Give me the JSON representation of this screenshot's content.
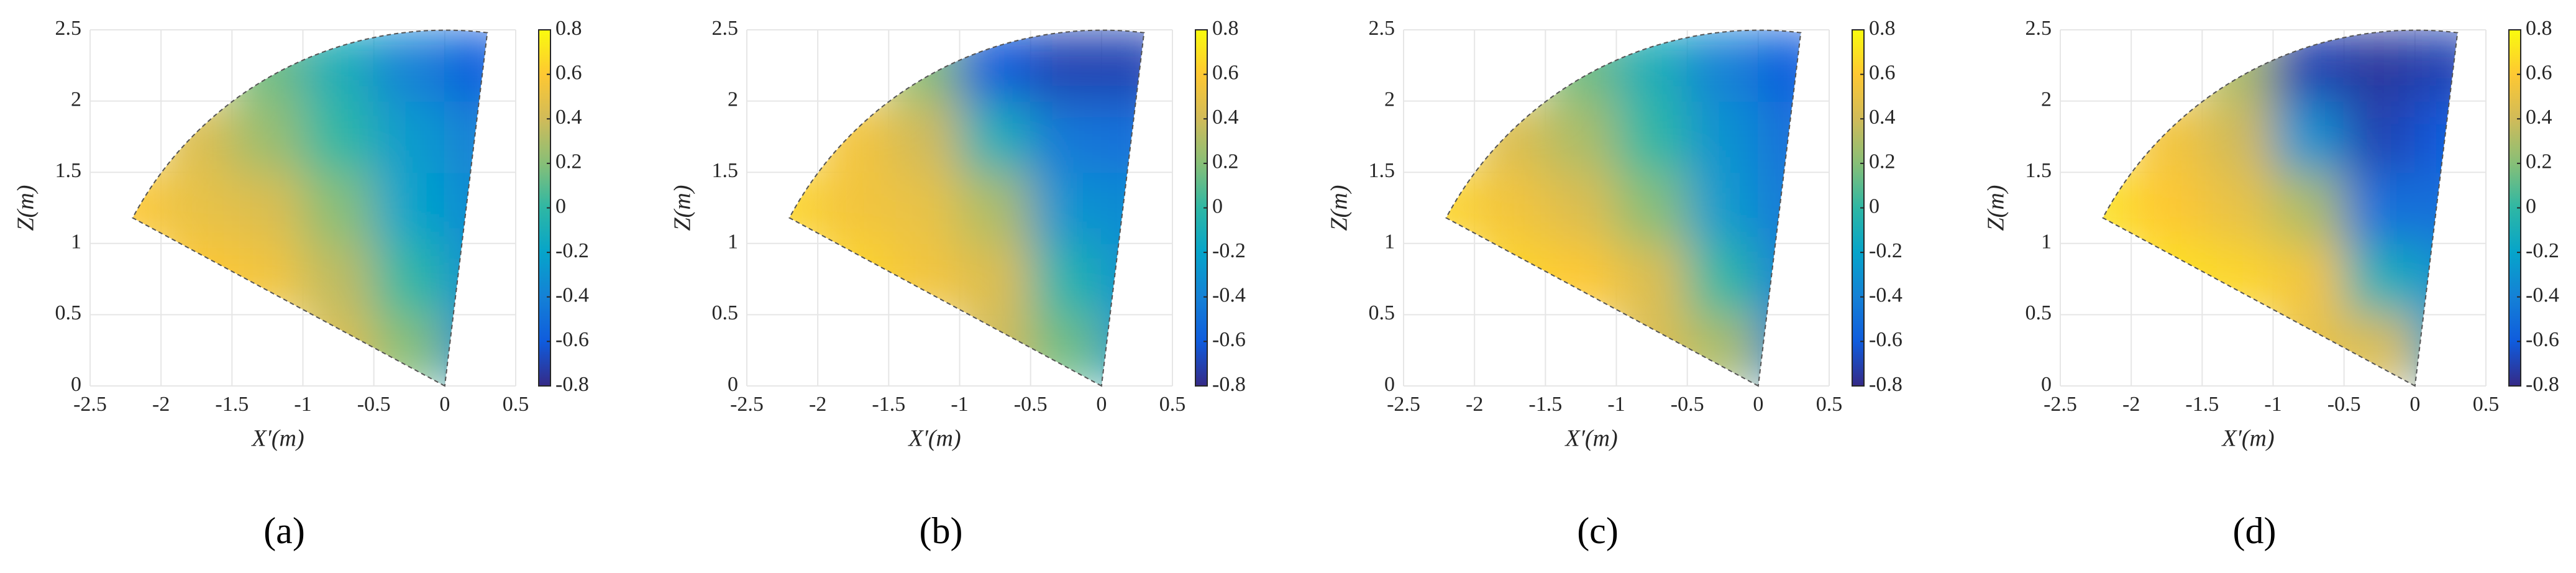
{
  "chart_data": [
    {
      "type": "heatmap",
      "panel_label": "(a)",
      "xlabel": "X′(m)",
      "ylabel": "Z(m)",
      "x": [
        -2.25,
        -1.75,
        -1.25,
        -0.75,
        -0.25,
        0.25
      ],
      "y": [
        0.25,
        0.75,
        1.25,
        1.75,
        2.25
      ],
      "z": [
        [
          null,
          null,
          null,
          0.45,
          0.2,
          -0.3
        ],
        [
          null,
          0.6,
          0.55,
          0.35,
          0.0,
          -0.3
        ],
        [
          0.6,
          0.5,
          0.45,
          0.2,
          -0.2,
          -0.35
        ],
        [
          null,
          0.45,
          0.25,
          0.0,
          -0.25,
          -0.4
        ],
        [
          null,
          null,
          0.15,
          -0.1,
          -0.4,
          -0.6
        ]
      ],
      "xlim": [
        -2.5,
        0.5
      ],
      "xticks": [
        -2.5,
        -2,
        -1.5,
        -1,
        -0.5,
        0,
        0.5
      ],
      "ylim": [
        0,
        2.5
      ],
      "yticks": [
        0,
        0.5,
        1,
        1.5,
        2,
        2.5
      ],
      "clim": [
        -0.8,
        0.8
      ],
      "cticks": [
        -0.8,
        -0.6,
        -0.4,
        -0.2,
        0,
        0.2,
        0.4,
        0.6,
        0.8
      ],
      "colormap": "parula",
      "grid": true
    },
    {
      "type": "heatmap",
      "panel_label": "(b)",
      "xlabel": "X′(m)",
      "ylabel": "Z(m)",
      "x": [
        -2.25,
        -1.75,
        -1.25,
        -0.75,
        -0.25,
        0.25
      ],
      "y": [
        0.25,
        0.75,
        1.25,
        1.75,
        2.25
      ],
      "z": [
        [
          null,
          null,
          null,
          0.4,
          0.15,
          -0.25
        ],
        [
          null,
          0.65,
          0.55,
          0.45,
          -0.05,
          -0.3
        ],
        [
          0.65,
          0.55,
          0.5,
          0.3,
          -0.3,
          -0.35
        ],
        [
          null,
          0.55,
          0.4,
          -0.1,
          -0.45,
          -0.5
        ],
        [
          null,
          null,
          0.2,
          -0.6,
          -0.7,
          -0.7
        ]
      ],
      "xlim": [
        -2.5,
        0.5
      ],
      "xticks": [
        -2.5,
        -2,
        -1.5,
        -1,
        -0.5,
        0,
        0.5
      ],
      "ylim": [
        0,
        2.5
      ],
      "yticks": [
        0,
        0.5,
        1,
        1.5,
        2,
        2.5
      ],
      "clim": [
        -0.8,
        0.8
      ],
      "cticks": [
        -0.8,
        -0.6,
        -0.4,
        -0.2,
        0,
        0.2,
        0.4,
        0.6,
        0.8
      ],
      "colormap": "parula",
      "grid": true
    },
    {
      "type": "heatmap",
      "panel_label": "(c)",
      "xlabel": "X′(m)",
      "ylabel": "Z(m)",
      "x": [
        -2.25,
        -1.75,
        -1.25,
        -0.75,
        -0.25,
        0.25
      ],
      "y": [
        0.25,
        0.75,
        1.25,
        1.75,
        2.25
      ],
      "z": [
        [
          null,
          null,
          null,
          0.45,
          0.3,
          -0.35
        ],
        [
          null,
          0.65,
          0.6,
          0.45,
          0.0,
          -0.4
        ],
        [
          0.65,
          0.55,
          0.45,
          0.2,
          -0.25,
          -0.45
        ],
        [
          null,
          0.45,
          0.3,
          0.0,
          -0.3,
          -0.5
        ],
        [
          null,
          null,
          0.15,
          -0.1,
          -0.4,
          -0.6
        ]
      ],
      "xlim": [
        -2.5,
        0.5
      ],
      "xticks": [
        -2.5,
        -2,
        -1.5,
        -1,
        -0.5,
        0,
        0.5
      ],
      "ylim": [
        0,
        2.5
      ],
      "yticks": [
        0,
        0.5,
        1,
        1.5,
        2,
        2.5
      ],
      "clim": [
        -0.8,
        0.8
      ],
      "cticks": [
        -0.8,
        -0.6,
        -0.4,
        -0.2,
        0,
        0.2,
        0.4,
        0.6,
        0.8
      ],
      "colormap": "parula",
      "grid": true
    },
    {
      "type": "heatmap",
      "panel_label": "(d)",
      "xlabel": "X′(m)",
      "ylabel": "Z(m)",
      "x": [
        -2.25,
        -1.75,
        -1.25,
        -0.75,
        -0.25,
        0.25
      ],
      "y": [
        0.25,
        0.75,
        1.25,
        1.75,
        2.25
      ],
      "z": [
        [
          null,
          null,
          null,
          0.5,
          0.45,
          -0.2
        ],
        [
          null,
          0.7,
          0.65,
          0.55,
          -0.1,
          -0.3
        ],
        [
          0.7,
          0.6,
          0.5,
          0.3,
          -0.5,
          -0.5
        ],
        [
          null,
          0.55,
          0.4,
          -0.3,
          -0.7,
          -0.6
        ],
        [
          null,
          null,
          0.3,
          -0.7,
          -0.75,
          -0.7
        ]
      ],
      "xlim": [
        -2.5,
        0.5
      ],
      "xticks": [
        -2.5,
        -2,
        -1.5,
        -1,
        -0.5,
        0,
        0.5
      ],
      "ylim": [
        0,
        2.5
      ],
      "yticks": [
        0,
        0.5,
        1,
        1.5,
        2,
        2.5
      ],
      "clim": [
        -0.8,
        0.8
      ],
      "cticks": [
        -0.8,
        -0.6,
        -0.4,
        -0.2,
        0,
        0.2,
        0.4,
        0.6,
        0.8
      ],
      "colormap": "parula",
      "grid": true
    }
  ]
}
